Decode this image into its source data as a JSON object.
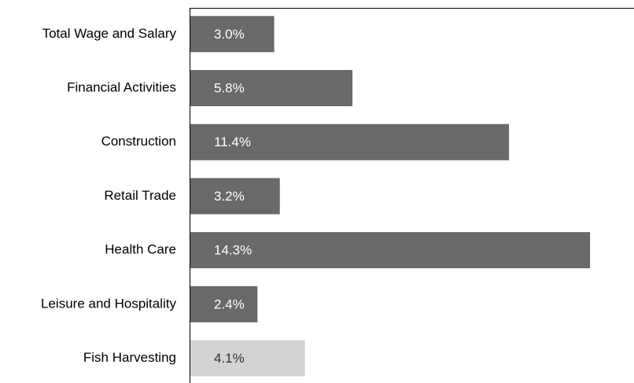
{
  "chart_data": {
    "type": "barh",
    "categories": [
      "Total Wage and Salary",
      "Financial Activities",
      "Construction",
      "Retail Trade",
      "Health Care",
      "Leisure and Hospitality",
      "Fish Harvesting"
    ],
    "values": [
      3.0,
      5.8,
      11.4,
      3.2,
      14.3,
      2.4,
      4.1
    ],
    "value_labels": [
      "3.0%",
      "5.8%",
      "11.4%",
      "3.2%",
      "14.3%",
      "2.4%",
      "4.1%"
    ],
    "colors": [
      "#696969",
      "#696969",
      "#696969",
      "#696969",
      "#696969",
      "#696969",
      "#d3d3d3"
    ],
    "xlim": [
      0,
      15
    ]
  }
}
